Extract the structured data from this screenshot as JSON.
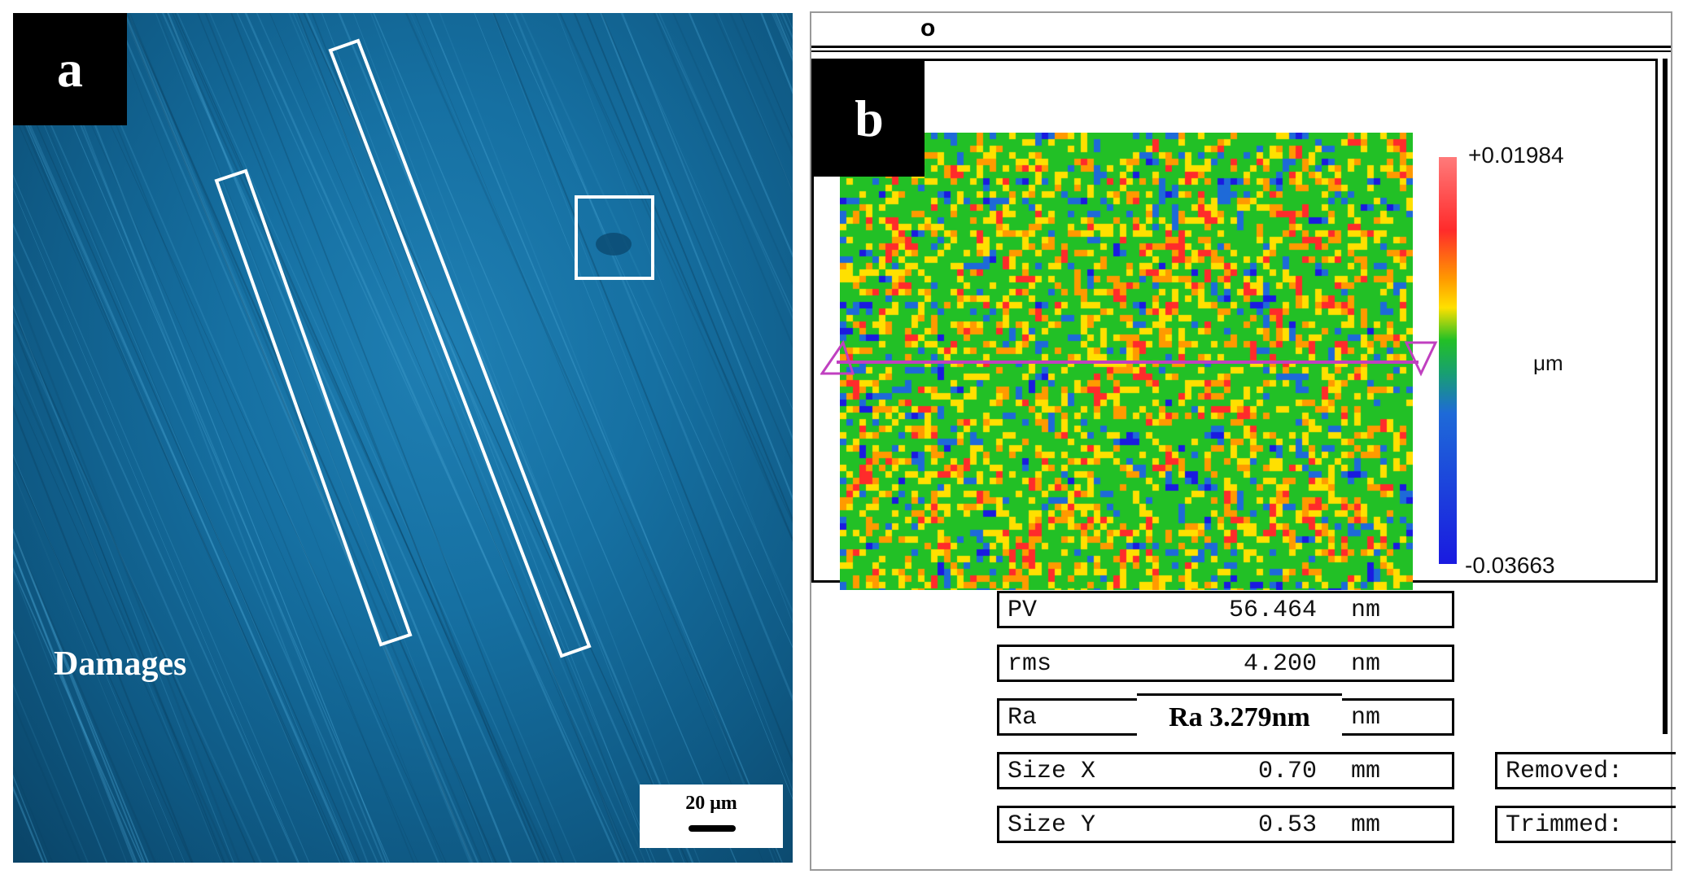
{
  "panel_a": {
    "label": "a",
    "annotation": "Damages",
    "scale_bar": "20 μm"
  },
  "panel_b": {
    "label": "b",
    "top_strip_glyph": "o",
    "colorbar": {
      "max": "+0.01984",
      "min": "-0.03663",
      "unit": "μm",
      "colors": [
        "#ff7a7a",
        "#ff2b2b",
        "#ff9a00",
        "#ffe000",
        "#22c026",
        "#1e6ad8",
        "#1a1ae0"
      ]
    },
    "stats": [
      {
        "label": "PV",
        "value": "56.464",
        "unit": "nm"
      },
      {
        "label": "rms",
        "value": "4.200",
        "unit": "nm"
      },
      {
        "label": "Ra",
        "value": "",
        "unit": "nm"
      },
      {
        "label": "Size X",
        "value": "0.70",
        "unit": "mm"
      },
      {
        "label": "Size Y",
        "value": "0.53",
        "unit": "mm"
      }
    ],
    "ra_note": "Ra 3.279nm",
    "side_fields": [
      {
        "label": "Removed:"
      },
      {
        "label": "Trimmed:"
      }
    ]
  }
}
